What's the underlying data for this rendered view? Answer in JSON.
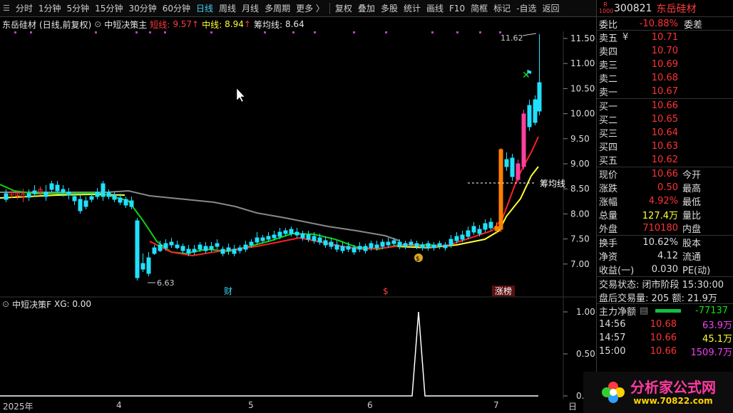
{
  "toolbar": {
    "items": [
      "分时",
      "1分钟",
      "5分钟",
      "15分钟",
      "30分钟",
      "60分钟",
      "日线",
      "周线",
      "月线",
      "多周期",
      "更多 〉"
    ],
    "active": "日线",
    "right": [
      "复权",
      "叠加",
      "多股",
      "统计",
      "画线",
      "F10",
      "简框",
      "标记",
      "-自选",
      "返回"
    ]
  },
  "legend": {
    "stock": "东岳硅材",
    "mode": "(日线,前复权)",
    "indicator": "中短决策主",
    "short_label": "短线:",
    "short_value": "9.57",
    "mid_label": "中线:",
    "mid_value": "8.94",
    "chip_label": "筹均线:",
    "chip_value": "8.64",
    "up_arrow": "↑"
  },
  "main_chart": {
    "y_ticks": [
      "11.50",
      "11.00",
      "10.50",
      "10.00",
      "9.50",
      "9.00",
      "8.50",
      "8.00",
      "7.50",
      "7.00"
    ],
    "high_label": "11.62",
    "low_label": "6.63",
    "chip_line_label": "筹均线",
    "event_labels": [
      "财",
      "$",
      "涨榜"
    ]
  },
  "lower_chart": {
    "title": "中短决策F",
    "xg_label": "XG: 0.00",
    "y_ticks": [
      "1.00",
      "0.50",
      "0.00"
    ]
  },
  "x_axis": {
    "labels": [
      "2025年",
      "4",
      "5",
      "6",
      "7"
    ],
    "period": "日线"
  },
  "quote": {
    "code": "300821",
    "name": "东岳硅材",
    "badge_top": "R",
    "badge_bottom": "1000",
    "wei_bi_label": "委比",
    "wei_bi": "-10.88%",
    "wei_cha_label": "委差",
    "asks": [
      {
        "label": "卖五",
        "price": "10.71",
        "mark": "¥"
      },
      {
        "label": "卖四",
        "price": "10.70",
        "mark": ""
      },
      {
        "label": "卖三",
        "price": "10.69",
        "mark": ""
      },
      {
        "label": "卖二",
        "price": "10.68",
        "mark": ""
      },
      {
        "label": "卖一",
        "price": "10.67",
        "mark": ""
      }
    ],
    "bids": [
      {
        "label": "买一",
        "price": "10.66"
      },
      {
        "label": "买二",
        "price": "10.65"
      },
      {
        "label": "买三",
        "price": "10.64"
      },
      {
        "label": "买四",
        "price": "10.63"
      },
      {
        "label": "买五",
        "price": "10.62"
      }
    ],
    "stats": [
      {
        "l1": "现价",
        "v1": "10.66",
        "l2": "今开"
      },
      {
        "l1": "涨跌",
        "v1": "0.50",
        "l2": "最高"
      },
      {
        "l1": "涨幅",
        "v1": "4.92%",
        "l2": "最低"
      },
      {
        "l1": "总量",
        "v1": "127.4万",
        "l2": "量比"
      },
      {
        "l1": "外盘",
        "v1": "710180",
        "l2": "内盘"
      }
    ],
    "stats2": [
      {
        "l1": "换手",
        "v1": "10.62%",
        "l2": "股本"
      },
      {
        "l1": "净资",
        "v1": "4.12",
        "l2": "流通"
      },
      {
        "l1": "收益(一)",
        "v1": "0.030",
        "l2": "PE(动)"
      }
    ],
    "trade_status": "交易状态: 闭市阶段 15:30:00",
    "after_hours": "盘后交易量: 205  额: 21.9万",
    "main_flow_label": "主力净额",
    "main_flow_value": "-77137",
    "ticks": [
      {
        "time": "14:56",
        "price": "10.68",
        "vol": "63.9万",
        "color": "#f040f0"
      },
      {
        "time": "14:57",
        "price": "10.66",
        "vol": "45.1万",
        "color": "#ffff33"
      },
      {
        "time": "15:00",
        "price": "10.66",
        "vol": "1509.7万",
        "color": "#f040f0"
      }
    ]
  },
  "watermark": {
    "text": "分析家公式网",
    "url": "www.70822.com"
  }
}
